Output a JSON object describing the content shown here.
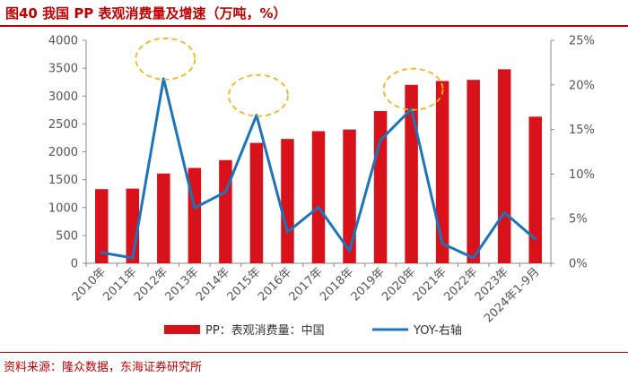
{
  "title": "图40  我国 PP 表观消费量及增速（万吨，%）",
  "source": "资料来源：隆众数据，东海证券研究所",
  "colors": {
    "bar": "#d7121a",
    "line": "#1b75bb",
    "circle": "#f2b51c",
    "accent": "#c00000"
  },
  "chart_data": {
    "type": "bar+line",
    "categories": [
      "2010年",
      "2011年",
      "2012年",
      "2013年",
      "2014年",
      "2015年",
      "2016年",
      "2017年",
      "2018年",
      "2019年",
      "2020年",
      "2021年",
      "2022年",
      "2023年",
      "2024年1-9月"
    ],
    "series": [
      {
        "name": "PP：表观消费量：中国",
        "type": "bar",
        "axis": "left",
        "values": [
          1330,
          1340,
          1610,
          1710,
          1850,
          2160,
          2230,
          2370,
          2400,
          2730,
          3200,
          3270,
          3290,
          3480,
          2630
        ]
      },
      {
        "name": "YOY-右轴",
        "type": "line",
        "axis": "right",
        "values": [
          1.2,
          0.6,
          20.7,
          6.2,
          8.0,
          16.6,
          3.5,
          6.3,
          1.4,
          13.8,
          17.3,
          2.2,
          0.6,
          5.7,
          2.7
        ]
      }
    ],
    "left_axis": {
      "min": 0,
      "max": 4000,
      "step": 500,
      "tick_labels": [
        "0",
        "500",
        "1000",
        "1500",
        "2000",
        "2500",
        "3000",
        "3500",
        "4000"
      ]
    },
    "right_axis": {
      "min": 0,
      "max": 25,
      "step": 5,
      "tick_labels": [
        "0%",
        "5%",
        "10%",
        "15%",
        "20%",
        "25%"
      ]
    },
    "highlights": [
      {
        "label": "2012年",
        "index": 2
      },
      {
        "label": "2015年",
        "index": 5
      },
      {
        "label": "2020年",
        "index": 10
      }
    ],
    "legend": [
      "PP：表观消费量：中国",
      "YOY-右轴"
    ],
    "legend_position": "bottom"
  }
}
